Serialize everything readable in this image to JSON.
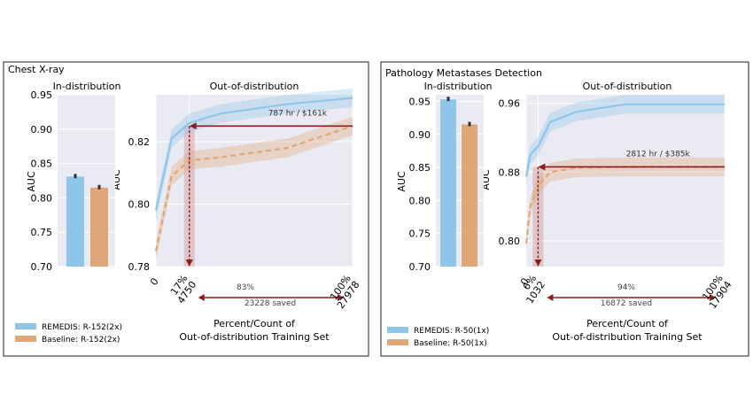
{
  "legend_colors": {
    "remedis": "#8ec6ea",
    "baseline": "#dfa776",
    "arrow": "#8b1c1c"
  },
  "chart_data": [
    {
      "panel_title": "Chest X-ray",
      "legend": [
        "REMEDIS: R-152(2x)",
        "Baseline: R-152(2x)"
      ],
      "in_distribution": {
        "type": "bar",
        "title": "In-distribution",
        "ylabel": "AUC",
        "ylim": [
          0.7,
          0.95
        ],
        "yticks": [
          "0.70",
          "0.75",
          "0.80",
          "0.85",
          "0.90",
          "0.95"
        ],
        "ytick_values": [
          0.7,
          0.75,
          0.8,
          0.85,
          0.9,
          0.95
        ],
        "series": [
          {
            "name": "REMEDIS: R-152(2x)",
            "values": [
              0.831
            ]
          },
          {
            "name": "Baseline: R-152(2x)",
            "values": [
              0.815
            ]
          }
        ]
      },
      "out_of_distribution": {
        "type": "line",
        "title": "Out-of-distribution",
        "ylabel": "AUC",
        "ylim": [
          0.78,
          0.835
        ],
        "yticks": [
          "0.78",
          "0.80",
          "0.82"
        ],
        "ytick_values": [
          0.78,
          0.8,
          0.82
        ],
        "xlim": [
          0,
          100
        ],
        "xtick_values": [
          0,
          17,
          100
        ],
        "xticks": [
          [
            "0"
          ],
          [
            "17%",
            "4750"
          ],
          [
            "100%",
            "27978"
          ]
        ],
        "xlabel": [
          "Percent/Count of",
          "Out-of-distribution Training Set"
        ],
        "series": [
          {
            "name": "REMEDIS: R-152(2x)",
            "x": [
              0,
              8,
              17,
              33,
              67,
              100
            ],
            "y": [
              0.798,
              0.821,
              0.826,
              0.829,
              0.832,
              0.834
            ]
          },
          {
            "name": "Baseline: R-152(2x)",
            "x": [
              0,
              8,
              17,
              33,
              67,
              100
            ],
            "y": [
              0.785,
              0.809,
              0.814,
              0.815,
              0.818,
              0.825
            ]
          }
        ],
        "match_x": 17,
        "match_y": 0.825,
        "annotation": "787 hr / $161k",
        "savings_percent": "83%",
        "savings_text": "23228 saved"
      }
    },
    {
      "panel_title": "Pathology Metastases Detection",
      "legend": [
        "REMEDIS: R-50(1x)",
        "Baseline: R-50(1x)"
      ],
      "in_distribution": {
        "type": "bar",
        "title": "In-distribution",
        "ylabel": "AUC",
        "ylim": [
          0.7,
          0.96
        ],
        "yticks": [
          "0.70",
          "0.75",
          "0.80",
          "0.85",
          "0.90",
          "0.95"
        ],
        "ytick_values": [
          0.7,
          0.75,
          0.8,
          0.85,
          0.9,
          0.95
        ],
        "series": [
          {
            "name": "REMEDIS: R-50(1x)",
            "values": [
              0.953
            ]
          },
          {
            "name": "Baseline: R-50(1x)",
            "values": [
              0.915
            ]
          }
        ]
      },
      "out_of_distribution": {
        "type": "line",
        "title": "Out-of-distribution",
        "ylabel": "AUC",
        "ylim": [
          0.77,
          0.97
        ],
        "yticks": [
          "0.80",
          "0.88",
          "0.96"
        ],
        "ytick_values": [
          0.8,
          0.88,
          0.96
        ],
        "xlim": [
          0,
          100
        ],
        "xtick_values": [
          0,
          6,
          100
        ],
        "xticks": [
          [
            "0"
          ],
          [
            "6%",
            "1032"
          ],
          [
            "100%",
            "17904"
          ]
        ],
        "xlabel": [
          "Percent/Count of",
          "Out-of-distribution Training Set"
        ],
        "series": [
          {
            "name": "REMEDIS: R-50(1x)",
            "x": [
              0,
              2,
              6,
              12,
              25,
              50,
              100
            ],
            "y": [
              0.875,
              0.9,
              0.91,
              0.938,
              0.95,
              0.959,
              0.959
            ]
          },
          {
            "name": "Baseline: R-50(1x)",
            "x": [
              0,
              2,
              6,
              12,
              25,
              50,
              100
            ],
            "y": [
              0.797,
              0.84,
              0.864,
              0.88,
              0.885,
              0.886,
              0.886
            ]
          }
        ],
        "match_x": 6,
        "match_y": 0.886,
        "annotation": "2812 hr / $385k",
        "savings_percent": "94%",
        "savings_text": "16872 saved"
      }
    }
  ]
}
